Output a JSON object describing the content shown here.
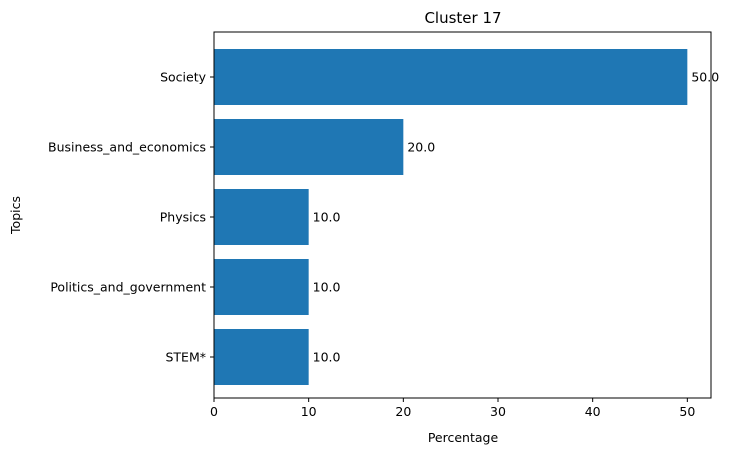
{
  "chart_data": {
    "type": "bar",
    "orientation": "horizontal",
    "title": "Cluster 17",
    "xlabel": "Percentage",
    "ylabel": "Topics",
    "categories": [
      "Society",
      "Business_and_economics",
      "Physics",
      "Politics_and_government",
      "STEM*"
    ],
    "values": [
      50.0,
      20.0,
      10.0,
      10.0,
      10.0
    ],
    "data_labels": [
      "50.0",
      "20.0",
      "10.0",
      "10.0",
      "10.0"
    ],
    "xlim": [
      0,
      52.5
    ],
    "xticks": [
      0,
      10,
      20,
      30,
      40,
      50
    ],
    "grid": false,
    "bar_color": "#1f77b4"
  }
}
